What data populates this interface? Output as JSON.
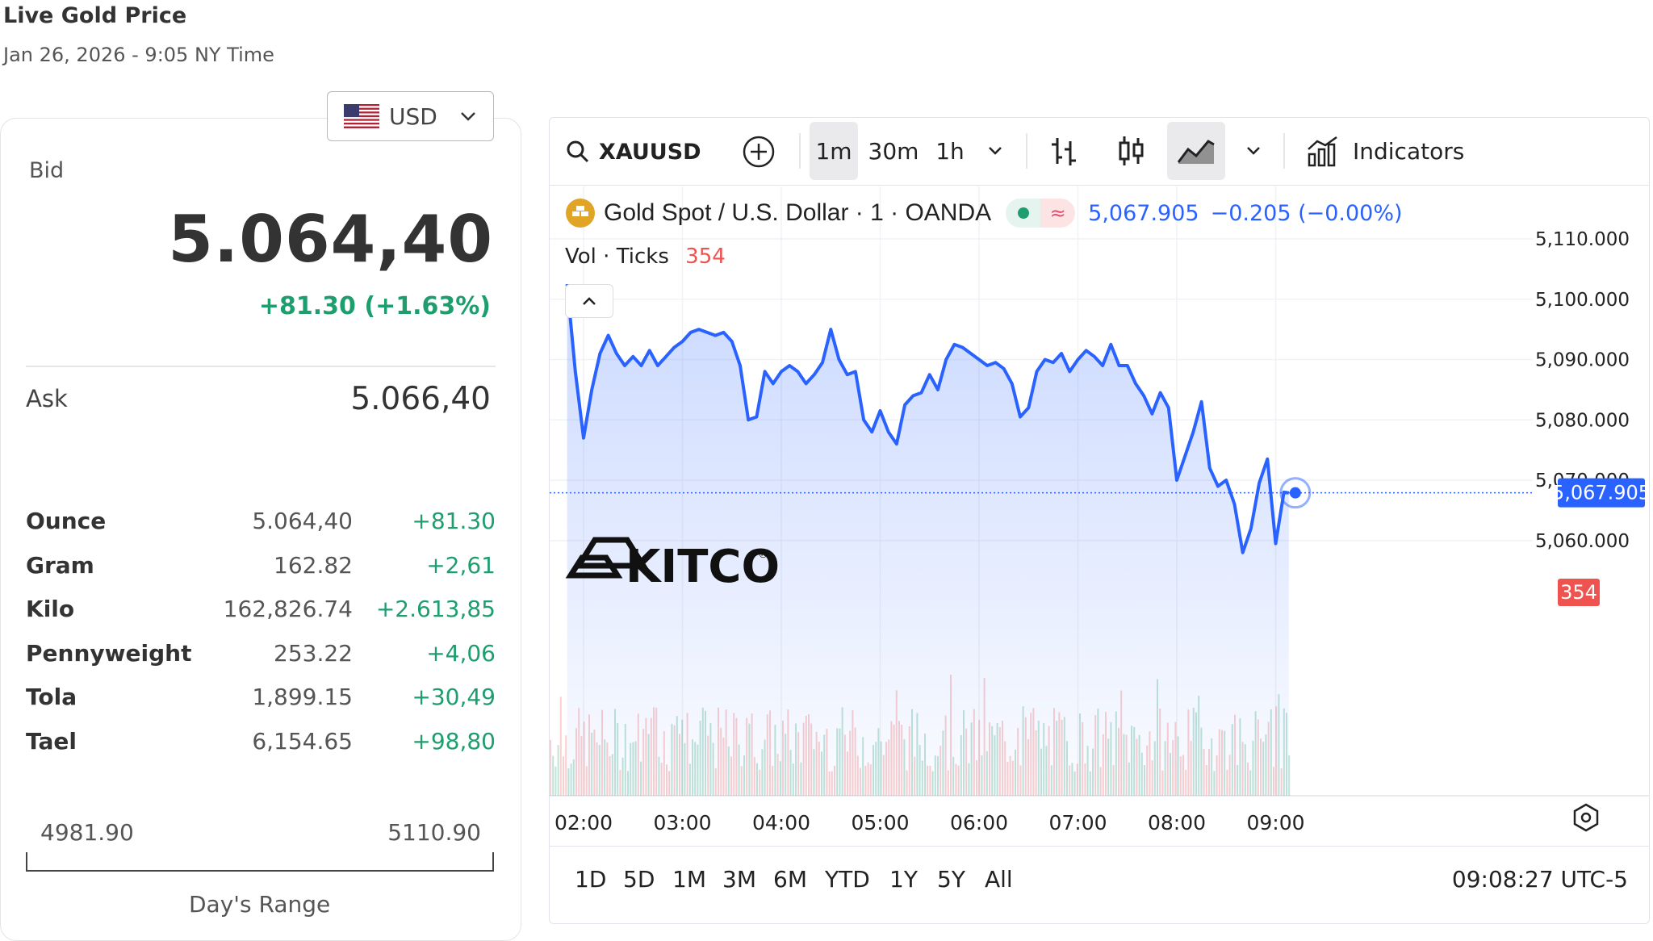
{
  "header": {
    "title": "Live Gold Price",
    "subtitle": "Jan 26, 2026 - 9:05 NY Time"
  },
  "currency": {
    "code": "USD",
    "flag_icon": "us-flag-icon"
  },
  "quote": {
    "bid_label": "Bid",
    "bid_value": "5.064,40",
    "bid_change": "+81.30 (+1.63%)",
    "ask_label": "Ask",
    "ask_value": "5.066,40"
  },
  "weights": [
    {
      "name": "Ounce",
      "price": "5.064,40",
      "change": "+81.30"
    },
    {
      "name": "Gram",
      "price": "162.82",
      "change": "+2,61"
    },
    {
      "name": "Kilo",
      "price": "162,826.74",
      "change": "+2.613,85"
    },
    {
      "name": "Pennyweight",
      "price": "253.22",
      "change": "+4,06"
    },
    {
      "name": "Tola",
      "price": "1,899.15",
      "change": "+30,49"
    },
    {
      "name": "Tael",
      "price": "6,154.65",
      "change": "+98,80"
    }
  ],
  "day_range": {
    "low": "4981.90",
    "high": "5110.90",
    "label": "Day's Range"
  },
  "toolbar": {
    "symbol": "XAUUSD",
    "intervals": [
      "1m",
      "30m",
      "1h"
    ],
    "active_interval": "1m",
    "indicators_label": "Indicators"
  },
  "legend": {
    "instrument": "Gold Spot / U.S. Dollar · 1 · OANDA",
    "last": "5,067.905",
    "change": "−0.205 (−0.00%)",
    "vol_label": "Vol · Ticks",
    "vol_value": "354"
  },
  "watermark": "KITCO",
  "price_axis": {
    "ticks": [
      "5,110.000",
      "5,100.000",
      "5,090.000",
      "5,080.000",
      "5,070.000",
      "5,060.000"
    ],
    "last_label": "5,067.905",
    "vol_label": "354"
  },
  "time_axis": [
    "02:00",
    "03:00",
    "04:00",
    "05:00",
    "06:00",
    "07:00",
    "08:00",
    "09:00"
  ],
  "ranges": [
    "1D",
    "5D",
    "1M",
    "3M",
    "6M",
    "YTD",
    "1Y",
    "5Y",
    "All"
  ],
  "clock": "09:08:27 UTC-5",
  "colors": {
    "line": "#2962ff",
    "up": "#1e9e6e",
    "down": "#ef5350",
    "accent": "#2962ff"
  },
  "chart_data": {
    "type": "area",
    "ylim": [
      5054,
      5112
    ],
    "x_start": "01:50",
    "x_end": "09:08",
    "last_price": 5067.905,
    "x": [
      "01:50",
      "01:55",
      "02:00",
      "02:05",
      "02:10",
      "02:15",
      "02:20",
      "02:25",
      "02:30",
      "02:35",
      "02:40",
      "02:45",
      "02:50",
      "02:55",
      "03:00",
      "03:05",
      "03:10",
      "03:15",
      "03:20",
      "03:25",
      "03:30",
      "03:35",
      "03:40",
      "03:45",
      "03:50",
      "03:55",
      "04:00",
      "04:05",
      "04:10",
      "04:15",
      "04:20",
      "04:25",
      "04:30",
      "04:35",
      "04:40",
      "04:45",
      "04:50",
      "04:55",
      "05:00",
      "05:05",
      "05:10",
      "05:15",
      "05:20",
      "05:25",
      "05:30",
      "05:35",
      "05:40",
      "05:45",
      "05:50",
      "05:55",
      "06:00",
      "06:05",
      "06:10",
      "06:15",
      "06:20",
      "06:25",
      "06:30",
      "06:35",
      "06:40",
      "06:45",
      "06:50",
      "06:55",
      "07:00",
      "07:05",
      "07:10",
      "07:15",
      "07:20",
      "07:25",
      "07:30",
      "07:35",
      "07:40",
      "07:45",
      "07:50",
      "07:55",
      "08:00",
      "08:05",
      "08:10",
      "08:15",
      "08:20",
      "08:25",
      "08:30",
      "08:35",
      "08:40",
      "08:45",
      "08:50",
      "08:55",
      "09:00",
      "09:05",
      "09:08"
    ],
    "values": [
      5102.5,
      5088.0,
      5077.0,
      5085.0,
      5091.0,
      5094.0,
      5091.0,
      5089.0,
      5090.5,
      5089.0,
      5091.5,
      5089.0,
      5090.5,
      5092.0,
      5093.0,
      5094.5,
      5095.0,
      5094.5,
      5094.0,
      5094.5,
      5093.0,
      5089.0,
      5080.0,
      5080.5,
      5088.0,
      5086.0,
      5088.0,
      5089.0,
      5088.0,
      5086.0,
      5087.5,
      5089.5,
      5095.0,
      5090.0,
      5087.5,
      5088.0,
      5080.0,
      5078.0,
      5081.5,
      5078.0,
      5076.0,
      5082.5,
      5084.0,
      5084.5,
      5087.5,
      5085.0,
      5090.0,
      5092.5,
      5092.0,
      5091.0,
      5090.0,
      5089.0,
      5089.5,
      5088.5,
      5086.0,
      5080.5,
      5082.0,
      5088.0,
      5090.0,
      5089.5,
      5091.0,
      5088.0,
      5090.0,
      5091.5,
      5090.5,
      5089.0,
      5092.5,
      5089.0,
      5089.0,
      5086.0,
      5084.0,
      5081.0,
      5084.5,
      5082.0,
      5070.0,
      5074.0,
      5078.0,
      5083.0,
      5072.0,
      5069.0,
      5070.0,
      5066.0,
      5058.0,
      5062.0,
      5069.5,
      5073.5,
      5059.5,
      5068.0,
      5067.9
    ]
  }
}
